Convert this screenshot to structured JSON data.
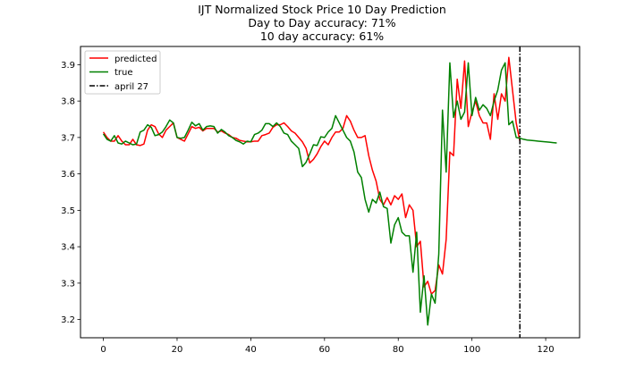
{
  "chart_data": {
    "type": "line",
    "title": "IJT Normalized Stock Price 10 Day Prediction",
    "subtitle_lines": [
      "Day to Day accuracy: 71%",
      "10 day accuracy: 61%"
    ],
    "xlabel": "",
    "ylabel": "",
    "xlim": [
      -6.2,
      129.2
    ],
    "ylim": [
      3.15,
      3.95
    ],
    "xticks": [
      0,
      20,
      40,
      60,
      80,
      100,
      120
    ],
    "yticks": [
      3.2,
      3.3,
      3.4,
      3.5,
      3.6,
      3.7,
      3.8,
      3.9
    ],
    "grid": false,
    "legend_location": "upper left",
    "vertical_line": {
      "x": 113,
      "label": "april 27",
      "color": "#000000",
      "style": "dashdot"
    },
    "series": [
      {
        "name": "predicted",
        "color": "#ff0000",
        "x": [
          0,
          1,
          2,
          3,
          4,
          5,
          6,
          7,
          8,
          9,
          10,
          11,
          12,
          13,
          14,
          15,
          16,
          17,
          18,
          19,
          20,
          21,
          22,
          23,
          24,
          25,
          26,
          27,
          28,
          29,
          30,
          31,
          32,
          33,
          34,
          35,
          36,
          37,
          38,
          39,
          40,
          41,
          42,
          43,
          44,
          45,
          46,
          47,
          48,
          49,
          50,
          51,
          52,
          53,
          54,
          55,
          56,
          57,
          58,
          59,
          60,
          61,
          62,
          63,
          64,
          65,
          66,
          67,
          68,
          69,
          70,
          71,
          72,
          73,
          74,
          75,
          76,
          77,
          78,
          79,
          80,
          81,
          82,
          83,
          84,
          85,
          86,
          87,
          88,
          89,
          90,
          91,
          92,
          93,
          94,
          95,
          96,
          97,
          98,
          99,
          100,
          101,
          102,
          103,
          104,
          105,
          106,
          107,
          108,
          109,
          110,
          111,
          112,
          113
        ],
        "values": [
          3.715,
          3.7,
          3.69,
          3.69,
          3.705,
          3.69,
          3.68,
          3.68,
          3.695,
          3.68,
          3.678,
          3.682,
          3.72,
          3.735,
          3.73,
          3.71,
          3.7,
          3.72,
          3.73,
          3.74,
          3.7,
          3.695,
          3.69,
          3.71,
          3.73,
          3.725,
          3.728,
          3.718,
          3.725,
          3.725,
          3.725,
          3.715,
          3.718,
          3.712,
          3.708,
          3.7,
          3.698,
          3.692,
          3.69,
          3.688,
          3.688,
          3.69,
          3.69,
          3.705,
          3.708,
          3.712,
          3.728,
          3.735,
          3.735,
          3.74,
          3.73,
          3.718,
          3.712,
          3.7,
          3.688,
          3.67,
          3.63,
          3.64,
          3.655,
          3.675,
          3.69,
          3.68,
          3.7,
          3.715,
          3.715,
          3.725,
          3.76,
          3.745,
          3.72,
          3.7,
          3.7,
          3.705,
          3.65,
          3.61,
          3.58,
          3.53,
          3.515,
          3.535,
          3.515,
          3.54,
          3.53,
          3.545,
          3.48,
          3.515,
          3.5,
          3.4,
          3.415,
          3.29,
          3.305,
          3.27,
          3.28,
          3.35,
          3.325,
          3.42,
          3.66,
          3.65,
          3.86,
          3.78,
          3.91,
          3.73,
          3.77,
          3.8,
          3.76,
          3.74,
          3.74,
          3.695,
          3.82,
          3.75,
          3.82,
          3.8,
          3.92,
          3.83,
          3.74,
          3.69
        ]
      },
      {
        "name": "true",
        "color": "#008000",
        "x": [
          0,
          1,
          2,
          3,
          4,
          5,
          6,
          7,
          8,
          9,
          10,
          11,
          12,
          13,
          14,
          15,
          16,
          17,
          18,
          19,
          20,
          21,
          22,
          23,
          24,
          25,
          26,
          27,
          28,
          29,
          30,
          31,
          32,
          33,
          34,
          35,
          36,
          37,
          38,
          39,
          40,
          41,
          42,
          43,
          44,
          45,
          46,
          47,
          48,
          49,
          50,
          51,
          52,
          53,
          54,
          55,
          56,
          57,
          58,
          59,
          60,
          61,
          62,
          63,
          64,
          65,
          66,
          67,
          68,
          69,
          70,
          71,
          72,
          73,
          74,
          75,
          76,
          77,
          78,
          79,
          80,
          81,
          82,
          83,
          84,
          85,
          86,
          87,
          88,
          89,
          90,
          91,
          92,
          93,
          94,
          95,
          96,
          97,
          98,
          99,
          100,
          101,
          102,
          103,
          104,
          105,
          106,
          107,
          108,
          109,
          110,
          111,
          112,
          113,
          114,
          115,
          116,
          117,
          118,
          119,
          120,
          121,
          122,
          123
        ],
        "values": [
          3.71,
          3.695,
          3.69,
          3.705,
          3.685,
          3.682,
          3.69,
          3.685,
          3.68,
          3.682,
          3.715,
          3.72,
          3.735,
          3.728,
          3.705,
          3.708,
          3.715,
          3.73,
          3.748,
          3.74,
          3.7,
          3.698,
          3.7,
          3.72,
          3.742,
          3.732,
          3.738,
          3.72,
          3.73,
          3.732,
          3.73,
          3.712,
          3.722,
          3.715,
          3.705,
          3.7,
          3.692,
          3.688,
          3.682,
          3.69,
          3.688,
          3.708,
          3.712,
          3.72,
          3.738,
          3.738,
          3.73,
          3.74,
          3.73,
          3.712,
          3.708,
          3.69,
          3.68,
          3.67,
          3.62,
          3.632,
          3.655,
          3.68,
          3.678,
          3.702,
          3.7,
          3.715,
          3.725,
          3.76,
          3.74,
          3.72,
          3.7,
          3.69,
          3.66,
          3.605,
          3.59,
          3.53,
          3.495,
          3.53,
          3.52,
          3.55,
          3.51,
          3.505,
          3.41,
          3.46,
          3.48,
          3.44,
          3.43,
          3.43,
          3.33,
          3.44,
          3.22,
          3.32,
          3.185,
          3.27,
          3.245,
          3.38,
          3.775,
          3.605,
          3.905,
          3.755,
          3.8,
          3.75,
          3.77,
          3.905,
          3.76,
          3.81,
          3.775,
          3.79,
          3.78,
          3.76,
          3.8,
          3.83,
          3.885,
          3.905,
          3.735,
          3.745,
          3.7,
          3.698,
          3.695,
          3.693,
          3.692,
          3.691,
          3.69,
          3.689,
          3.688,
          3.687,
          3.686,
          3.685
        ]
      }
    ]
  }
}
